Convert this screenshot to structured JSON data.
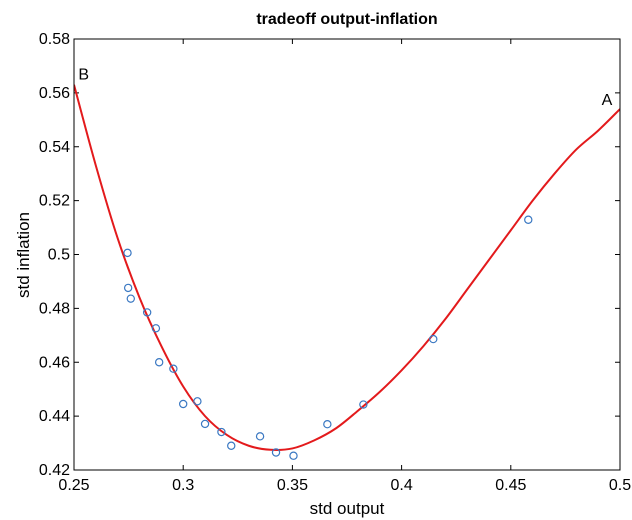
{
  "chart_data": {
    "type": "scatter",
    "title": "tradeoff output-inflation",
    "xlabel": "std output",
    "ylabel": "std inflation",
    "xlim": [
      0.25,
      0.5
    ],
    "ylim": [
      0.42,
      0.58
    ],
    "xticks": [
      0.25,
      0.3,
      0.35,
      0.4,
      0.45,
      0.5
    ],
    "xtick_labels": [
      "0.25",
      "0.3",
      "0.35",
      "0.4",
      "0.45",
      "0.5"
    ],
    "yticks": [
      0.42,
      0.44,
      0.46,
      0.48,
      0.5,
      0.52,
      0.54,
      0.56,
      0.58
    ],
    "ytick_labels": [
      "0.42",
      "0.44",
      "0.46",
      "0.48",
      "0.5",
      "0.52",
      "0.54",
      "0.56",
      "0.58"
    ],
    "grid": false,
    "series": [
      {
        "kind": "points",
        "marker": "circle-open",
        "color": "#3a78c2",
        "x": [
          0.2745,
          0.2748,
          0.276,
          0.2835,
          0.2875,
          0.289,
          0.2955,
          0.3,
          0.3065,
          0.31,
          0.3175,
          0.322,
          0.3352,
          0.3425,
          0.3505,
          0.366,
          0.3825,
          0.4145,
          0.458
        ],
        "y": [
          0.5006,
          0.4876,
          0.4836,
          0.4785,
          0.4726,
          0.46,
          0.4576,
          0.4445,
          0.4455,
          0.4371,
          0.4341,
          0.429,
          0.4325,
          0.4265,
          0.4253,
          0.437,
          0.4443,
          0.4686,
          0.5129
        ]
      },
      {
        "kind": "line",
        "color": "#e31a1c",
        "x": [
          0.25,
          0.26,
          0.27,
          0.28,
          0.29,
          0.3,
          0.31,
          0.32,
          0.33,
          0.34,
          0.35,
          0.36,
          0.37,
          0.38,
          0.39,
          0.4,
          0.41,
          0.42,
          0.43,
          0.44,
          0.45,
          0.46,
          0.47,
          0.48,
          0.49,
          0.5
        ],
        "y": [
          0.563,
          0.533,
          0.506,
          0.484,
          0.466,
          0.451,
          0.44,
          0.433,
          0.429,
          0.4275,
          0.428,
          0.431,
          0.4355,
          0.442,
          0.449,
          0.457,
          0.466,
          0.476,
          0.487,
          0.498,
          0.509,
          0.52,
          0.53,
          0.539,
          0.546,
          0.554
        ]
      }
    ],
    "annotations": [
      {
        "text": "B",
        "x": 0.252,
        "y": 0.565
      },
      {
        "text": "A",
        "x": 0.4965,
        "y": 0.5555
      }
    ]
  }
}
